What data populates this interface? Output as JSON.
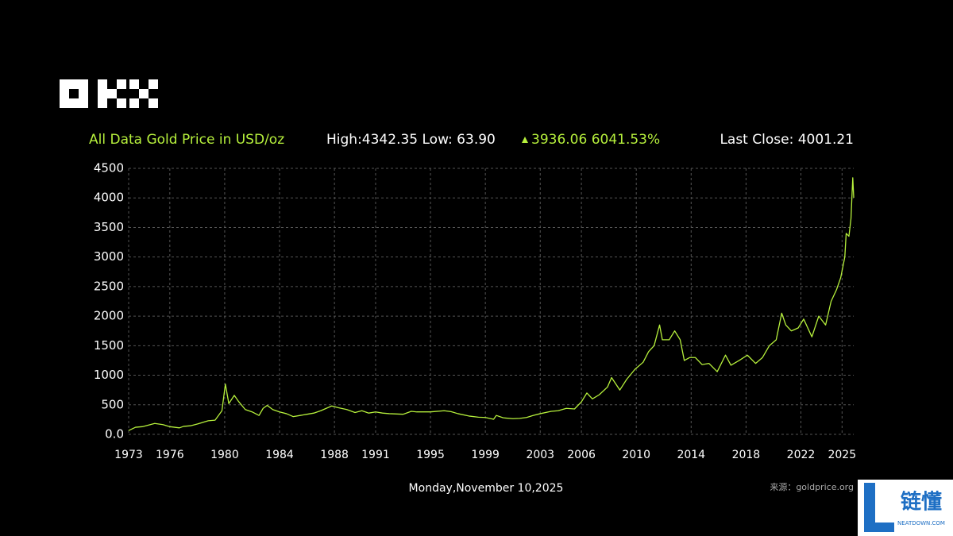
{
  "chart_data": {
    "type": "line",
    "title": "All Data Gold Price in USD/oz",
    "high_low": "High:4342.35 Low: 63.90",
    "change": "3936.06 6041.53%",
    "last_close": "Last Close: 4001.21",
    "date": "Monday,November 10,2025",
    "source": "来源：goldprice.org",
    "color": "#b6f03c",
    "grid": true,
    "x": [
      1973.0,
      1973.5,
      1974.0,
      1974.9,
      1975.5,
      1976.0,
      1976.7,
      1977.0,
      1977.5,
      1978.0,
      1978.8,
      1979.3,
      1979.8,
      1980.05,
      1980.3,
      1980.7,
      1981.0,
      1981.5,
      1982.0,
      1982.5,
      1982.8,
      1983.1,
      1983.5,
      1984.0,
      1984.5,
      1985.0,
      1985.5,
      1986.0,
      1986.5,
      1987.0,
      1987.8,
      1988.3,
      1988.9,
      1989.5,
      1990.0,
      1990.5,
      1991.0,
      1991.5,
      1992.0,
      1993.0,
      1993.6,
      1994.0,
      1995.0,
      1996.0,
      1996.5,
      1997.0,
      1997.8,
      1998.5,
      1999.0,
      1999.6,
      1999.8,
      2000.3,
      2001.0,
      2001.5,
      2002.0,
      2002.5,
      2003.0,
      2003.8,
      2004.3,
      2004.9,
      2005.5,
      2006.0,
      2006.4,
      2006.8,
      2007.3,
      2007.9,
      2008.2,
      2008.8,
      2009.3,
      2009.9,
      2010.5,
      2010.9,
      2011.3,
      2011.7,
      2011.9,
      2012.4,
      2012.8,
      2013.2,
      2013.5,
      2013.9,
      2014.3,
      2014.8,
      2015.3,
      2015.9,
      2016.5,
      2016.9,
      2017.5,
      2018.1,
      2018.7,
      2019.2,
      2019.7,
      2020.2,
      2020.6,
      2020.9,
      2021.3,
      2021.8,
      2022.2,
      2022.8,
      2023.3,
      2023.8,
      2024.2,
      2024.6,
      2024.9,
      2025.2,
      2025.3,
      2025.5,
      2025.65,
      2025.78,
      2025.85
    ],
    "values": [
      65,
      120,
      130,
      185,
      165,
      130,
      110,
      135,
      145,
      175,
      230,
      240,
      400,
      850,
      520,
      660,
      560,
      420,
      380,
      320,
      440,
      490,
      420,
      380,
      350,
      300,
      320,
      340,
      360,
      400,
      480,
      450,
      420,
      370,
      400,
      360,
      380,
      360,
      350,
      340,
      390,
      380,
      380,
      400,
      385,
      350,
      310,
      290,
      285,
      255,
      320,
      280,
      265,
      270,
      285,
      320,
      350,
      390,
      400,
      440,
      430,
      550,
      700,
      600,
      670,
      800,
      960,
      750,
      930,
      1100,
      1220,
      1400,
      1500,
      1850,
      1600,
      1600,
      1750,
      1600,
      1250,
      1300,
      1300,
      1180,
      1200,
      1060,
      1340,
      1170,
      1250,
      1340,
      1200,
      1300,
      1500,
      1600,
      2050,
      1850,
      1750,
      1800,
      1950,
      1650,
      2000,
      1850,
      2250,
      2450,
      2650,
      3000,
      3400,
      3350,
      3650,
      4340,
      4001
    ],
    "xlim": [
      1973,
      2025.85
    ],
    "xticks": [
      1973,
      1976,
      1980,
      1984,
      1988,
      1991,
      1995,
      1999,
      2003,
      2006,
      2010,
      2014,
      2018,
      2022,
      2025
    ],
    "ylim": [
      0,
      4500
    ],
    "yticks": [
      {
        "value": 0,
        "label": "0.0"
      },
      500,
      1000,
      1500,
      2000,
      2500,
      3000,
      3500,
      4000,
      4500
    ]
  },
  "watermark": {
    "name": "链懂",
    "site": "NEATDOWN.COM"
  }
}
